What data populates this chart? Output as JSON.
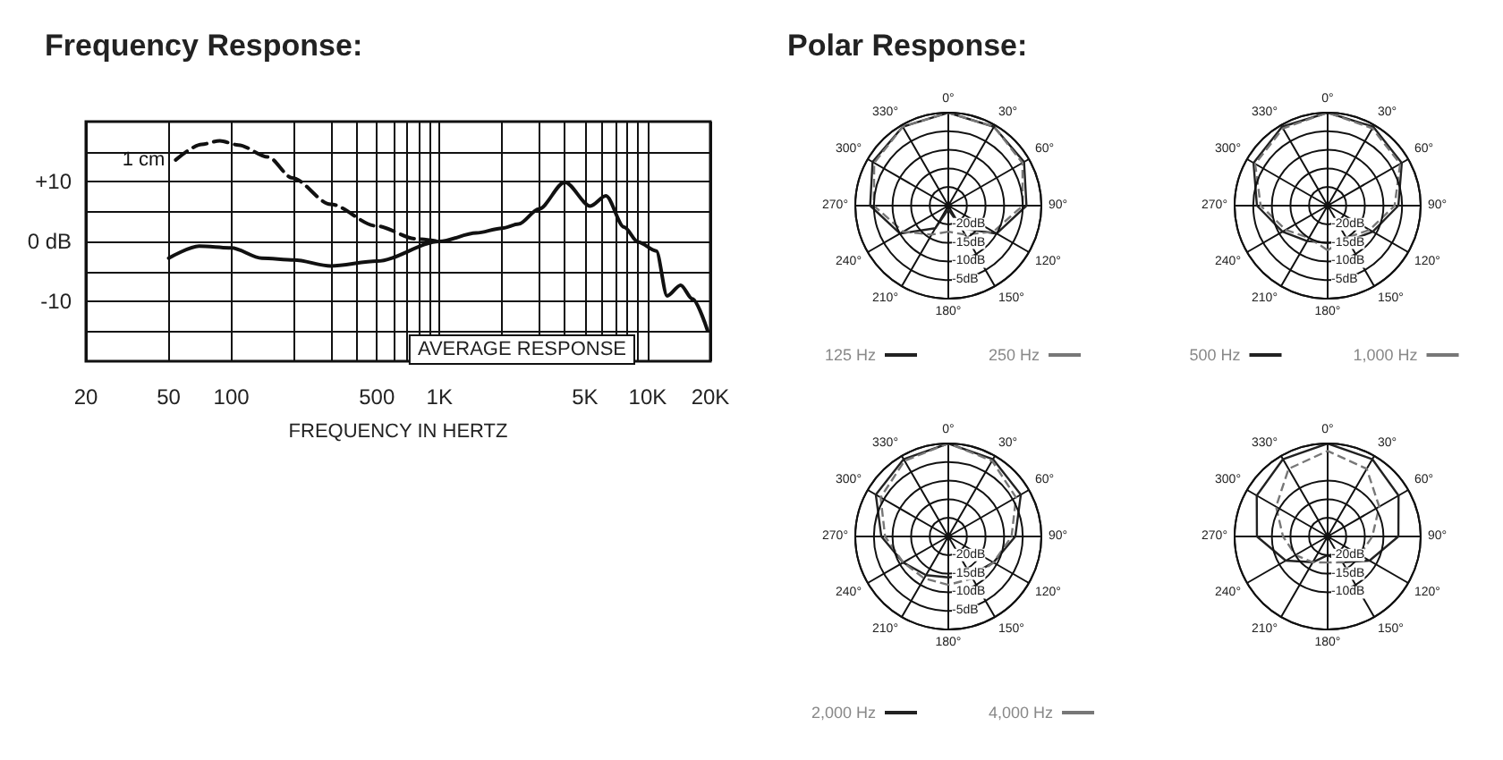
{
  "chart_data": [
    {
      "type": "line",
      "title": "Frequency Response:",
      "xlabel": "FREQUENCY IN HERTZ",
      "log": "x",
      "xlim": [
        20,
        20000
      ],
      "xticks": [
        20,
        50,
        100,
        {
          "value": 200,
          "label": null
        },
        {
          "value": 300,
          "label": null
        },
        {
          "value": 400,
          "label": null
        },
        500,
        {
          "value": 600,
          "label": null
        },
        {
          "value": 700,
          "label": null
        },
        {
          "value": 800,
          "label": null
        },
        {
          "value": 900,
          "label": null
        },
        {
          "value": 1000,
          "label": "1K"
        },
        {
          "value": 2000,
          "label": null
        },
        {
          "value": 3000,
          "label": null
        },
        {
          "value": 4000,
          "label": null
        },
        {
          "value": 5000,
          "label": "5K"
        },
        {
          "value": 6000,
          "label": null
        },
        {
          "value": 7000,
          "label": null
        },
        {
          "value": 8000,
          "label": null
        },
        {
          "value": 9000,
          "label": null
        },
        {
          "value": 10000,
          "label": "10K"
        },
        {
          "value": 20000,
          "label": "20K"
        }
      ],
      "ylim": [
        -20,
        20
      ],
      "yticks": [
        {
          "value": -15,
          "label": null
        },
        {
          "value": -10,
          "label": "-10"
        },
        {
          "value": -5,
          "label": null
        },
        {
          "value": 0,
          "label": "0 dB"
        },
        {
          "value": 5,
          "label": null
        },
        {
          "value": 10,
          "label": "+10"
        },
        {
          "value": 15,
          "label": null
        }
      ],
      "grid": true,
      "annotations": [
        "AVERAGE RESPONSE"
      ],
      "series": [
        {
          "color": "#111111",
          "line_style": "solid",
          "x": [
            50,
            70,
            100,
            140,
            200,
            300,
            500,
            1000,
            1500,
            2000,
            2400,
            3000,
            4000,
            5300,
            6300,
            7700,
            9000,
            11000,
            12400,
            14400,
            16400,
            19400
          ],
          "values": [
            -2.8,
            -0.8,
            -1.1,
            -2.8,
            -3.1,
            -4.1,
            -3.3,
            0,
            1.4,
            2.2,
            2.9,
            5.4,
            9.9,
            5.9,
            7.6,
            2.4,
            -0.1,
            -1.6,
            -9.1,
            -7.3,
            -9.6,
            -14.9
          ]
        },
        {
          "name": "1 cm",
          "color": "#111111",
          "line_style": "dashed",
          "x": [
            54,
            72,
            88,
            108,
            150,
            196,
            300,
            494,
            780,
            1000
          ],
          "values": [
            13.6,
            16.2,
            16.8,
            16.1,
            14.1,
            10.6,
            6.2,
            2.6,
            0.4,
            0
          ]
        }
      ]
    },
    {
      "type": "radar",
      "title": "Polar Response:",
      "categories": [
        "0°",
        "30°",
        "60°",
        "90°",
        "120°",
        "150°",
        "180°",
        "210°",
        "240°",
        "270°",
        "300°",
        "330°"
      ],
      "ylim": [
        -25,
        0
      ],
      "yticks": [
        {
          "value": -20,
          "label": "-20dB"
        },
        {
          "value": -15,
          "label": "-15dB"
        },
        {
          "value": -10,
          "label": "-10dB"
        },
        {
          "value": -5,
          "label": "-5dB"
        }
      ],
      "legend": "bottom",
      "series": [
        {
          "name": "125 Hz",
          "color": "#222222",
          "line_style": "solid",
          "values": [
            0,
            -0.5,
            -1.5,
            -4,
            -10,
            -18,
            -24,
            -18,
            -10,
            -4,
            -1.5,
            -0.5
          ]
        },
        {
          "name": "250 Hz",
          "color": "#777777",
          "line_style": "dashed",
          "values": [
            0,
            -0.5,
            -2,
            -5,
            -11,
            -16,
            -18,
            -16,
            -11,
            -5,
            -2,
            -0.5
          ]
        }
      ]
    },
    {
      "type": "radar",
      "categories": [
        "0°",
        "30°",
        "60°",
        "90°",
        "120°",
        "150°",
        "180°",
        "210°",
        "240°",
        "270°",
        "300°",
        "330°"
      ],
      "ylim": [
        -25,
        0
      ],
      "yticks": [
        {
          "value": -20,
          "label": "-20dB"
        },
        {
          "value": -15,
          "label": "-15dB"
        },
        {
          "value": -10,
          "label": "-10dB"
        },
        {
          "value": -5,
          "label": "-5dB"
        }
      ],
      "legend": "bottom",
      "series": [
        {
          "name": "500 Hz",
          "color": "#222222",
          "line_style": "solid",
          "values": [
            0,
            -0.5,
            -2,
            -6,
            -11,
            -14,
            -15,
            -14,
            -11,
            -6,
            -2,
            -0.5
          ]
        },
        {
          "name": "1,000 Hz",
          "color": "#777777",
          "line_style": "dashed",
          "values": [
            0,
            -1,
            -2.5,
            -7,
            -12,
            -15,
            -13,
            -15,
            -12,
            -7,
            -2.5,
            -1
          ]
        }
      ]
    },
    {
      "type": "radar",
      "categories": [
        "0°",
        "30°",
        "60°",
        "90°",
        "120°",
        "150°",
        "180°",
        "210°",
        "240°",
        "270°",
        "300°",
        "330°"
      ],
      "ylim": [
        -25,
        0
      ],
      "yticks": [
        {
          "value": -20,
          "label": "-20dB"
        },
        {
          "value": -15,
          "label": "-15dB"
        },
        {
          "value": -10,
          "label": "-10dB"
        },
        {
          "value": -5,
          "label": "-5dB"
        }
      ],
      "legend": "bottom",
      "series": [
        {
          "name": "2,000 Hz",
          "color": "#222222",
          "line_style": "solid",
          "values": [
            0,
            -1,
            -2.5,
            -7,
            -11,
            -13,
            -14,
            -13,
            -11,
            -7,
            -2.5,
            -1
          ]
        },
        {
          "name": "4,000 Hz",
          "color": "#777777",
          "line_style": "dashed",
          "values": [
            0,
            -1.5,
            -4,
            -8,
            -11,
            -12,
            -12,
            -12,
            -11,
            -8,
            -4,
            -1.5
          ]
        }
      ]
    },
    {
      "type": "radar",
      "categories": [
        "0°",
        "30°",
        "60°",
        "90°",
        "120°",
        "150°",
        "180°",
        "210°",
        "240°",
        "270°",
        "300°",
        "330°"
      ],
      "ylim": [
        -25,
        0
      ],
      "yticks": [
        {
          "value": -20,
          "label": "-20dB"
        },
        {
          "value": -15,
          "label": "-15dB"
        },
        {
          "value": -10,
          "label": "-10dB"
        }
      ],
      "series": [
        {
          "color": "#222222",
          "line_style": "solid",
          "values": [
            0,
            -1,
            -3,
            -6,
            -12,
            -17,
            -20,
            -17,
            -12,
            -6,
            -3,
            -1
          ]
        },
        {
          "color": "#777777",
          "line_style": "dashed",
          "values": [
            -2,
            -4,
            -9,
            -13,
            -15,
            -17,
            -18,
            -17,
            -15,
            -13,
            -9,
            -4
          ]
        }
      ]
    }
  ]
}
